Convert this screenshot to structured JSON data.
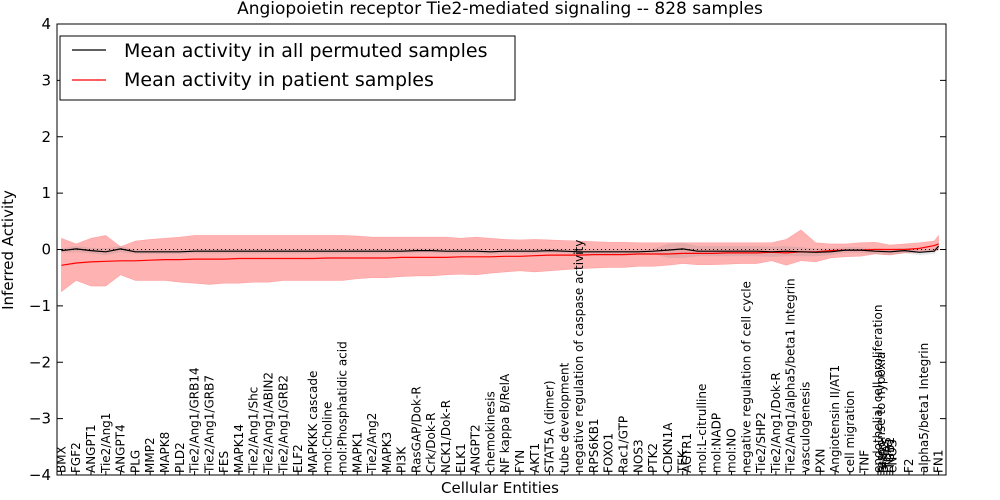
{
  "chart_data": {
    "type": "line",
    "title": "Angiopoietin receptor Tie2-mediated signaling -- 828 samples",
    "xlabel": "Cellular Entities",
    "ylabel": "Inferred Activity",
    "ylim": [
      -4,
      4
    ],
    "yticks": [
      "−4",
      "−3",
      "−2",
      "−1",
      "0",
      "1",
      "2",
      "3",
      "4"
    ],
    "ytick_values": [
      -4,
      -3,
      -2,
      -1,
      0,
      1,
      2,
      3,
      4
    ],
    "legend_position": "top-left",
    "categories": [
      "BMX",
      "FGF2",
      "ANGPT1",
      "Tie2/Ang1",
      "ANGPT4",
      "PLG",
      "MMP2",
      "MAPK8",
      "PLD2",
      "Tie2/Ang1/GRB14",
      "Tie2/Ang1/GRB7",
      "FES",
      "MAPK14",
      "Tie2/Ang1/Shc",
      "Tie2/Ang1/ABIN2",
      "Tie2/Ang1/GRB2",
      "ELF2",
      "MAPKKK cascade",
      "mol:Choline",
      "mol:Phosphatidic acid",
      "MAPK1",
      "Tie2/Ang2",
      "MAPK3",
      "PI3K",
      "RasGAP/Dok-R",
      "Crk/Dok-R",
      "NCK1/Dok-R",
      "ELK1",
      "ANGPT2",
      "chemokinesis",
      "NF kappa B/RelA",
      "FYN",
      "AKT1",
      "STAT5A (dimer)",
      "tube development",
      "negative regulation of caspase activity",
      "RPS6KB1",
      "FOXO1",
      "Rac1/GTP",
      "NOS3",
      "PTK2",
      "CDKN1A",
      "TEK",
      "AGTR1",
      "mol:L-citrulline",
      "mol:NADP",
      "mol:NO",
      "negative regulation of cell cycle",
      "Tie2/SHP2",
      "Tie2/Ang1/Dok-R",
      "Tie2/Ang1/alpha5/beta1 Integrin",
      "vasculogenesis",
      "PXN",
      "Angiotensin II/AT1",
      "cell migration",
      "TNF",
      "endothelial cell proliferation",
      "response to hypoxia",
      "SHP2",
      "ITGA5",
      "ITGB1",
      "eNOS",
      "F2",
      "alpha5/beta1 Integrin",
      "FN1"
    ],
    "x_positions": [
      0,
      1,
      2,
      3,
      4,
      5,
      6,
      7,
      8,
      9,
      10,
      11,
      12,
      13,
      14,
      15,
      16,
      17,
      18,
      19,
      20,
      21,
      22,
      23,
      24,
      25,
      26,
      27,
      28,
      29,
      30,
      31,
      32,
      33,
      34,
      35,
      36,
      37,
      38,
      39,
      40,
      41,
      42,
      42.3,
      43.3,
      44.3,
      45.3,
      46.3,
      47.3,
      48.3,
      49.3,
      50.3,
      51.3,
      52.3,
      53.3,
      54.3,
      55.2,
      55.4,
      55.6,
      55.8,
      56,
      56.2,
      57.3,
      58.3,
      59.3
    ],
    "x_range": [
      -0.3,
      59.8
    ],
    "series": [
      {
        "name": "Mean activity in all permuted samples",
        "color": "#000000",
        "x": [
          0,
          1,
          2,
          3,
          4,
          5,
          6,
          7,
          8,
          9,
          10,
          11,
          12,
          13,
          14,
          15,
          16,
          17,
          18,
          19,
          20,
          21,
          22,
          23,
          24,
          25,
          26,
          27,
          28,
          29,
          30,
          31,
          32,
          33,
          34,
          35,
          36,
          37,
          38,
          39,
          40,
          41,
          42,
          43,
          44,
          45,
          46,
          47,
          48,
          49,
          50,
          51,
          52,
          53,
          54,
          55,
          56,
          57,
          58,
          59,
          59.3
        ],
        "values": [
          -0.02,
          0.01,
          -0.02,
          -0.04,
          0.01,
          -0.04,
          -0.04,
          -0.04,
          -0.04,
          -0.03,
          -0.03,
          -0.03,
          -0.03,
          -0.03,
          -0.03,
          -0.03,
          -0.03,
          -0.03,
          -0.03,
          -0.03,
          -0.03,
          -0.03,
          -0.03,
          -0.03,
          -0.02,
          -0.02,
          -0.03,
          -0.03,
          -0.03,
          -0.04,
          -0.03,
          -0.03,
          -0.03,
          -0.02,
          -0.03,
          -0.04,
          -0.04,
          -0.04,
          -0.04,
          -0.04,
          -0.03,
          -0.01,
          0.01,
          -0.03,
          -0.03,
          -0.03,
          -0.03,
          -0.03,
          -0.04,
          -0.03,
          -0.04,
          -0.05,
          -0.04,
          -0.01,
          -0.01,
          -0.03,
          -0.04,
          -0.02,
          -0.05,
          -0.03,
          0.06
        ],
        "band_low": [
          -0.06,
          -0.05,
          -0.07,
          -0.1,
          -0.05,
          -0.08,
          -0.08,
          -0.08,
          -0.08,
          -0.07,
          -0.07,
          -0.07,
          -0.07,
          -0.07,
          -0.07,
          -0.07,
          -0.07,
          -0.07,
          -0.07,
          -0.07,
          -0.07,
          -0.07,
          -0.07,
          -0.07,
          -0.06,
          -0.06,
          -0.07,
          -0.07,
          -0.07,
          -0.08,
          -0.07,
          -0.07,
          -0.07,
          -0.06,
          -0.07,
          -0.08,
          -0.08,
          -0.08,
          -0.08,
          -0.08,
          -0.07,
          -0.15,
          -0.15,
          -0.12,
          -0.12,
          -0.12,
          -0.12,
          -0.12,
          -0.13,
          -0.12,
          -0.12,
          -0.12,
          -0.1,
          -0.06,
          -0.06,
          -0.08,
          -0.09,
          -0.07,
          -0.1,
          -0.08,
          0.0
        ],
        "band_high": [
          0.02,
          0.06,
          0.03,
          0.02,
          0.06,
          0.0,
          0.0,
          0.0,
          0.0,
          0.01,
          0.01,
          0.01,
          0.01,
          0.01,
          0.01,
          0.01,
          0.01,
          0.01,
          0.01,
          0.01,
          0.01,
          0.01,
          0.01,
          0.01,
          0.02,
          0.02,
          0.01,
          0.01,
          0.01,
          0.0,
          0.01,
          0.01,
          0.01,
          0.02,
          0.01,
          0.0,
          0.0,
          0.0,
          0.0,
          0.0,
          0.01,
          0.1,
          0.12,
          0.06,
          0.06,
          0.06,
          0.06,
          0.06,
          0.05,
          0.06,
          0.04,
          0.02,
          0.02,
          0.04,
          0.04,
          0.02,
          0.01,
          0.03,
          0.0,
          0.02,
          0.12
        ]
      },
      {
        "name": "Mean activity in patient samples",
        "color": "#ff0000",
        "x": [
          0,
          1,
          2,
          3,
          4,
          5,
          6,
          7,
          8,
          9,
          10,
          11,
          12,
          13,
          14,
          15,
          16,
          17,
          18,
          19,
          20,
          21,
          22,
          23,
          24,
          25,
          26,
          27,
          28,
          29,
          30,
          31,
          32,
          33,
          34,
          35,
          36,
          37,
          38,
          39,
          40,
          41,
          42,
          43,
          44,
          45,
          46,
          47,
          48,
          49,
          50,
          51,
          52,
          53,
          54,
          55,
          56,
          57,
          58,
          59,
          59.3
        ],
        "values": [
          -0.28,
          -0.24,
          -0.22,
          -0.21,
          -0.2,
          -0.2,
          -0.19,
          -0.18,
          -0.18,
          -0.17,
          -0.17,
          -0.17,
          -0.16,
          -0.16,
          -0.16,
          -0.16,
          -0.16,
          -0.16,
          -0.15,
          -0.15,
          -0.15,
          -0.15,
          -0.15,
          -0.14,
          -0.14,
          -0.14,
          -0.14,
          -0.13,
          -0.13,
          -0.13,
          -0.12,
          -0.12,
          -0.11,
          -0.1,
          -0.1,
          -0.1,
          -0.09,
          -0.09,
          -0.09,
          -0.08,
          -0.08,
          -0.08,
          -0.07,
          -0.07,
          -0.07,
          -0.06,
          -0.06,
          -0.06,
          -0.05,
          -0.06,
          -0.04,
          -0.04,
          -0.02,
          -0.01,
          -0.01,
          0.0,
          0.0,
          0.0,
          0.02,
          0.07,
          0.1
        ],
        "band_low": [
          -0.75,
          -0.55,
          -0.65,
          -0.65,
          -0.45,
          -0.55,
          -0.55,
          -0.55,
          -0.58,
          -0.6,
          -0.62,
          -0.6,
          -0.6,
          -0.58,
          -0.58,
          -0.55,
          -0.55,
          -0.55,
          -0.55,
          -0.55,
          -0.52,
          -0.5,
          -0.5,
          -0.48,
          -0.47,
          -0.47,
          -0.45,
          -0.44,
          -0.45,
          -0.42,
          -0.4,
          -0.38,
          -0.4,
          -0.38,
          -0.36,
          -0.34,
          -0.33,
          -0.32,
          -0.32,
          -0.3,
          -0.3,
          -0.28,
          -0.25,
          -0.27,
          -0.27,
          -0.26,
          -0.25,
          -0.25,
          -0.2,
          -0.28,
          -0.2,
          -0.22,
          -0.15,
          -0.13,
          -0.12,
          -0.08,
          -0.1,
          -0.06,
          -0.05,
          -0.02,
          -0.01
        ],
        "band_high": [
          0.2,
          0.1,
          0.2,
          0.25,
          0.05,
          0.15,
          0.18,
          0.2,
          0.22,
          0.25,
          0.25,
          0.25,
          0.25,
          0.25,
          0.25,
          0.25,
          0.25,
          0.25,
          0.25,
          0.25,
          0.24,
          0.22,
          0.22,
          0.22,
          0.22,
          0.22,
          0.22,
          0.2,
          0.22,
          0.2,
          0.18,
          0.17,
          0.18,
          0.17,
          0.16,
          0.15,
          0.14,
          0.13,
          0.13,
          0.12,
          0.12,
          0.12,
          0.12,
          0.12,
          0.12,
          0.12,
          0.12,
          0.12,
          0.12,
          0.18,
          0.35,
          0.12,
          0.1,
          0.1,
          0.12,
          0.13,
          0.08,
          0.1,
          0.12,
          0.15,
          0.25
        ]
      }
    ]
  }
}
